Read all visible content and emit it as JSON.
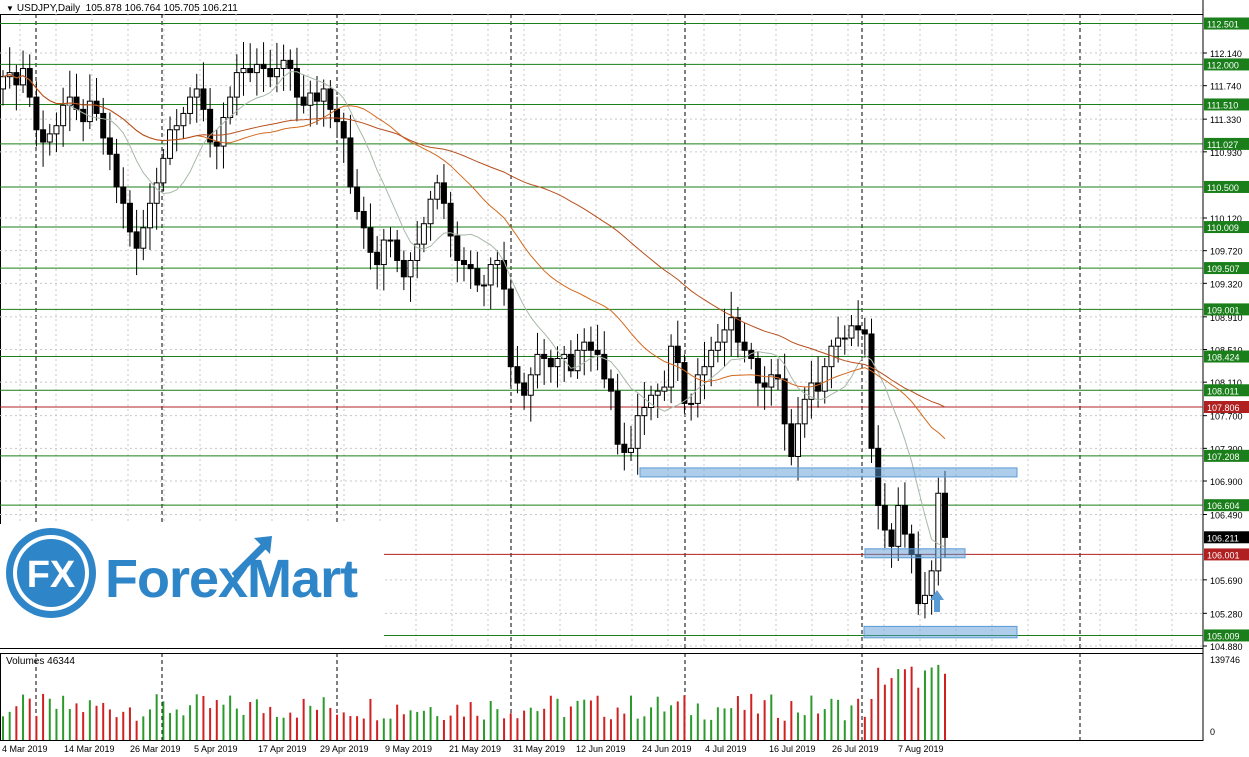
{
  "header": {
    "symbol": "USDJPY,Daily",
    "ohlc": "105.878 106.764 105.705 106.211"
  },
  "volume_header": "Volumes 46344",
  "logo": {
    "text": "ForexMart",
    "badge": "FX"
  },
  "colors": {
    "bull": "#000000",
    "bear": "#000000",
    "level_green": "#1a7f1a",
    "level_red": "#b02020",
    "ma_fast": "#a8b8a8",
    "ma_mid": "#d2691e",
    "ma_slow": "#b8501e",
    "zone": "#5b9bd5",
    "vol_up": "#2a9a2a",
    "vol_down": "#d02020"
  },
  "chart_data": {
    "type": "candlestick",
    "symbol": "USDJPY",
    "timeframe": "Daily",
    "ylim": [
      104.88,
      112.6
    ],
    "y_ticks": [
      "112.140",
      "111.740",
      "111.330",
      "110.930",
      "110.120",
      "109.720",
      "109.320",
      "108.910",
      "108.510",
      "108.110",
      "107.700",
      "107.300",
      "106.900",
      "106.490",
      "105.690",
      "105.280",
      "104.880"
    ],
    "x_ticks": [
      "4 Mar 2019",
      "14 Mar 2019",
      "26 Mar 2019",
      "5 Apr 2019",
      "17 Apr 2019",
      "29 Apr 2019",
      "9 May 2019",
      "21 May 2019",
      "31 May 2019",
      "12 Jun 2019",
      "24 Jun 2019",
      "4 Jul 2019",
      "16 Jul 2019",
      "26 Jul 2019",
      "7 Aug 2019"
    ],
    "levels": [
      {
        "label": "112.501",
        "value": 112.501,
        "color": "green"
      },
      {
        "label": "112.000",
        "value": 112.0,
        "color": "green"
      },
      {
        "label": "111.510",
        "value": 111.51,
        "color": "green"
      },
      {
        "label": "111.027",
        "value": 111.027,
        "color": "green"
      },
      {
        "label": "110.500",
        "value": 110.5,
        "color": "green"
      },
      {
        "label": "110.009",
        "value": 110.009,
        "color": "green"
      },
      {
        "label": "109.507",
        "value": 109.507,
        "color": "green"
      },
      {
        "label": "109.001",
        "value": 109.001,
        "color": "green"
      },
      {
        "label": "108.424",
        "value": 108.424,
        "color": "green"
      },
      {
        "label": "108.011",
        "value": 108.011,
        "color": "green"
      },
      {
        "label": "107.806",
        "value": 107.806,
        "color": "red"
      },
      {
        "label": "107.208",
        "value": 107.208,
        "color": "green"
      },
      {
        "label": "106.604",
        "value": 106.604,
        "color": "green"
      },
      {
        "label": "106.001",
        "value": 106.001,
        "color": "red"
      },
      {
        "label": "105.009",
        "value": 105.009,
        "color": "green"
      }
    ],
    "current_price": {
      "label": "106.211",
      "value": 106.211
    },
    "candles_close": [
      111.85,
      111.9,
      111.75,
      111.95,
      111.6,
      111.2,
      111.05,
      111.15,
      111.25,
      111.5,
      111.6,
      111.45,
      111.3,
      111.55,
      111.4,
      111.1,
      110.9,
      110.5,
      110.3,
      109.95,
      109.75,
      110.0,
      110.3,
      110.55,
      110.85,
      111.2,
      111.25,
      111.4,
      111.6,
      111.7,
      111.45,
      111.05,
      111.0,
      111.35,
      111.6,
      111.9,
      111.95,
      111.9,
      112.0,
      111.95,
      111.85,
      111.95,
      112.05,
      111.95,
      111.6,
      111.5,
      111.65,
      111.55,
      111.7,
      111.45,
      111.3,
      111.1,
      110.5,
      110.2,
      110.0,
      109.7,
      109.55,
      109.85,
      109.85,
      109.6,
      109.4,
      109.6,
      109.8,
      110.05,
      110.35,
      110.55,
      110.3,
      109.9,
      109.6,
      109.55,
      109.5,
      109.3,
      109.3,
      109.55,
      109.6,
      109.25,
      108.3,
      108.1,
      107.95,
      108.2,
      108.45,
      108.4,
      108.3,
      108.4,
      108.45,
      108.25,
      108.5,
      108.6,
      108.5,
      108.45,
      108.15,
      108.0,
      107.35,
      107.25,
      107.3,
      107.7,
      107.8,
      107.95,
      108.0,
      108.05,
      108.55,
      108.35,
      107.85,
      107.85,
      108.2,
      108.3,
      108.5,
      108.6,
      108.75,
      108.9,
      108.6,
      108.5,
      108.4,
      108.1,
      108.05,
      108.2,
      108.15,
      107.6,
      107.2,
      107.6,
      107.9,
      108.1,
      108.0,
      108.3,
      108.55,
      108.65,
      108.65,
      108.8,
      108.75,
      108.7,
      107.3,
      106.6,
      106.3,
      106.1,
      106.6,
      106.25,
      106.0,
      105.4,
      105.5,
      105.8,
      106.75,
      106.21
    ],
    "volumes_note": "daily volume histogram, max label 139746"
  }
}
